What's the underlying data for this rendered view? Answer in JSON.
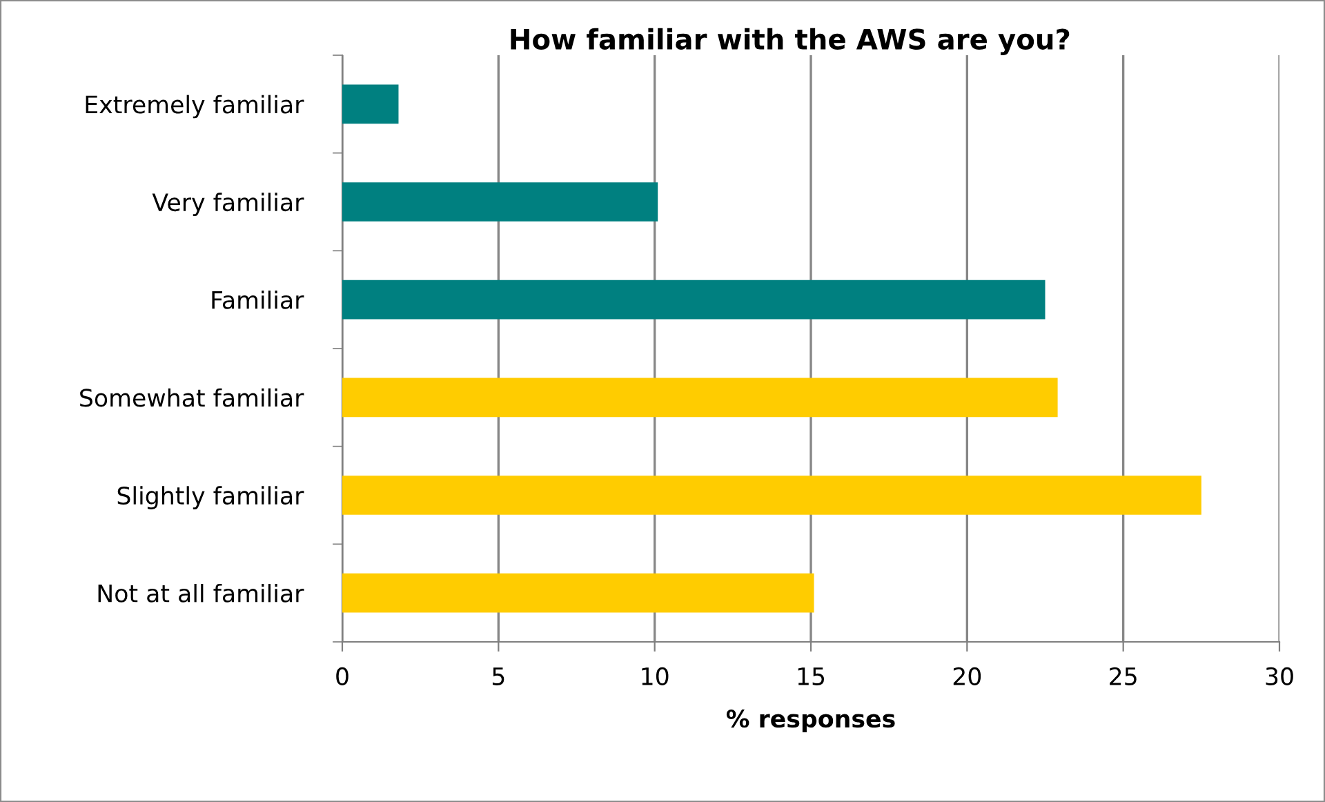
{
  "chart_data": {
    "type": "bar",
    "orientation": "horizontal",
    "title": "How familiar with the AWS are you?",
    "xlabel": "% responses",
    "categories": [
      "Extremely familiar",
      "Very familiar",
      "Familiar",
      "Somewhat familiar",
      "Slightly familiar",
      "Not at all familiar"
    ],
    "values": [
      1.8,
      10.1,
      22.5,
      22.9,
      27.5,
      15.1
    ],
    "colors": [
      "#008080",
      "#008080",
      "#008080",
      "#ffcc00",
      "#ffcc00",
      "#ffcc00"
    ],
    "xlim": [
      0,
      30
    ],
    "xticks": [
      0,
      5,
      10,
      15,
      20,
      25,
      30
    ],
    "grid": "x"
  }
}
